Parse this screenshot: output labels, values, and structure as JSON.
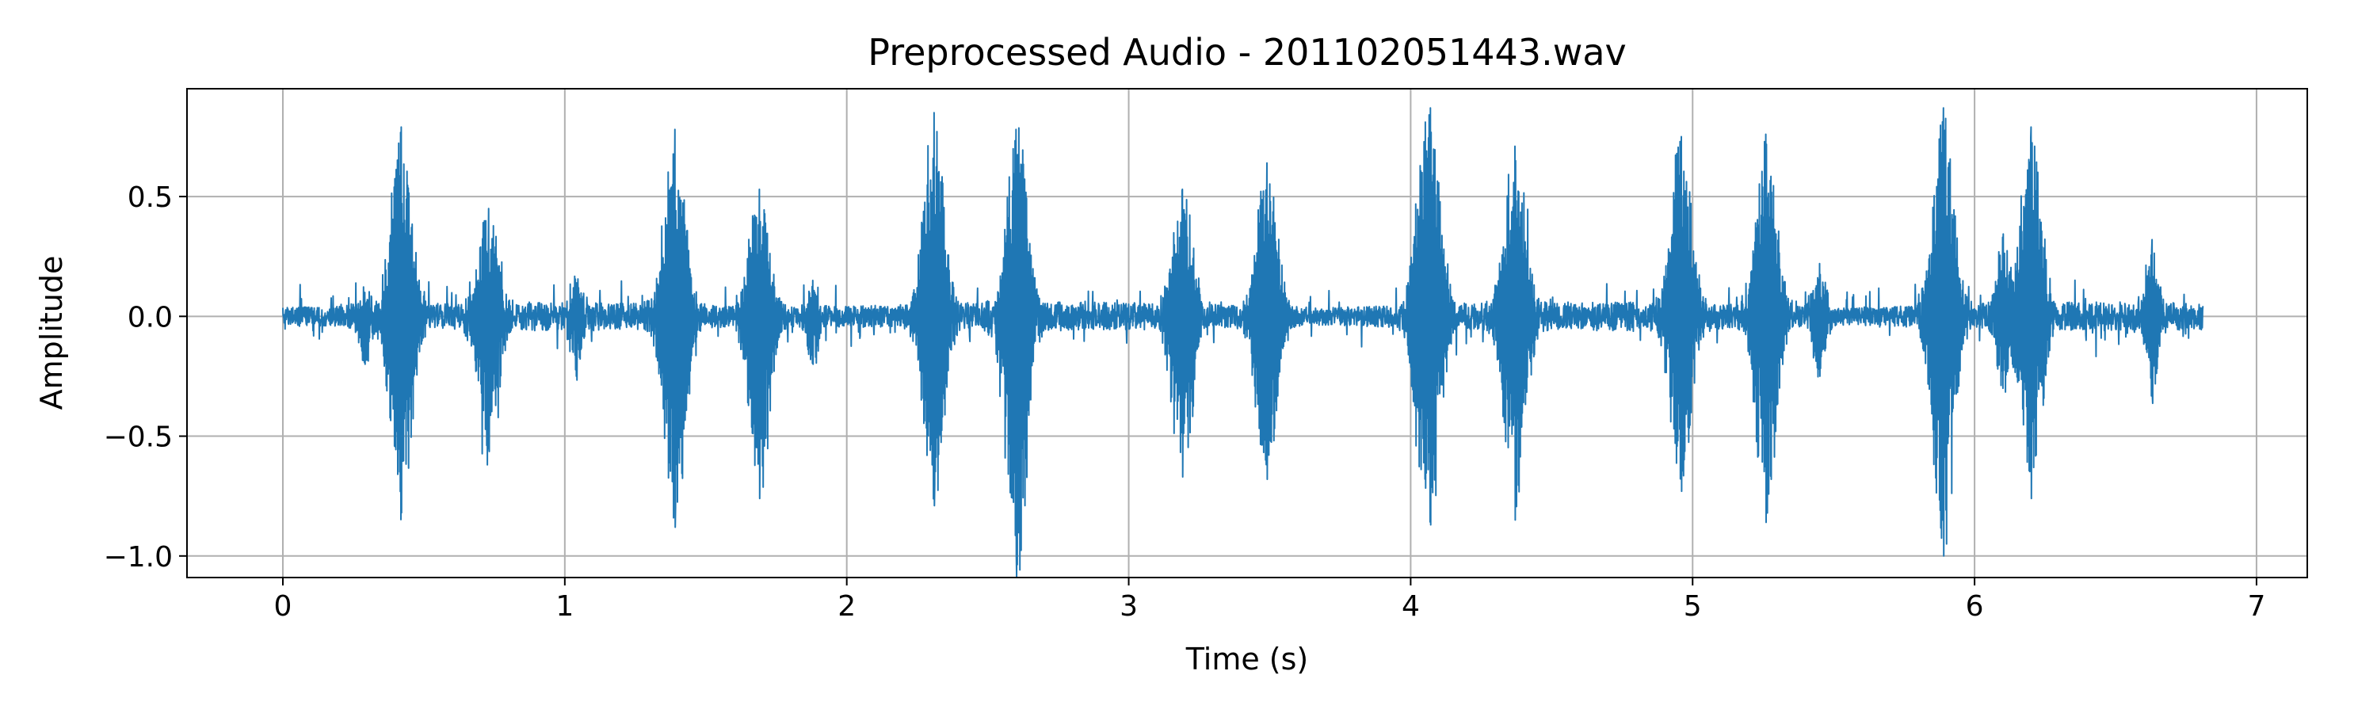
{
  "chart_data": {
    "type": "line",
    "title": "Preprocessed Audio - 201102051443.wav",
    "xlabel": "Time (s)",
    "ylabel": "Amplitude",
    "xlim": [
      -0.34,
      7.18
    ],
    "ylim": [
      -1.09,
      0.95
    ],
    "xticks": [
      0,
      1,
      2,
      3,
      4,
      5,
      6,
      7
    ],
    "xtick_labels": [
      "0",
      "1",
      "2",
      "3",
      "4",
      "5",
      "6",
      "7"
    ],
    "yticks": [
      -1.0,
      -0.5,
      0.0,
      0.5
    ],
    "ytick_labels": [
      "−1.0",
      "−0.5",
      "0.0",
      "0.5"
    ],
    "grid": true,
    "line_color": "#1f77b4",
    "duration_s": 6.81,
    "noise_floor": 0.04,
    "bursts": [
      {
        "t": 0.42,
        "max": 0.79,
        "min": -0.82
      },
      {
        "t": 0.73,
        "max": 0.45,
        "min": -0.55
      },
      {
        "t": 1.39,
        "max": 0.78,
        "min": -0.88
      },
      {
        "t": 1.69,
        "max": 0.53,
        "min": -0.76
      },
      {
        "t": 2.31,
        "max": 0.85,
        "min": -0.79
      },
      {
        "t": 2.6,
        "max": 0.78,
        "min": -1.0
      },
      {
        "t": 3.19,
        "max": 0.53,
        "min": -0.67
      },
      {
        "t": 3.49,
        "max": 0.64,
        "min": -0.68
      },
      {
        "t": 4.07,
        "max": 0.87,
        "min": -0.87
      },
      {
        "t": 4.37,
        "max": 0.71,
        "min": -0.85
      },
      {
        "t": 4.96,
        "max": 0.75,
        "min": -0.73
      },
      {
        "t": 5.26,
        "max": 0.76,
        "min": -0.86
      },
      {
        "t": 5.89,
        "max": 0.87,
        "min": -1.0
      },
      {
        "t": 6.2,
        "max": 0.79,
        "min": -0.76
      }
    ],
    "minor_peaks": [
      {
        "t": 0.29,
        "max": 0.1,
        "min": -0.2
      },
      {
        "t": 1.04,
        "max": 0.14,
        "min": -0.25
      },
      {
        "t": 1.88,
        "max": 0.15,
        "min": -0.2
      },
      {
        "t": 2.62,
        "max": 0.2,
        "min": -0.3
      },
      {
        "t": 4.02,
        "max": 0.25,
        "min": -0.3
      },
      {
        "t": 5.45,
        "max": 0.22,
        "min": -0.25
      },
      {
        "t": 6.1,
        "max": 0.33,
        "min": -0.3
      },
      {
        "t": 6.63,
        "max": 0.32,
        "min": -0.33
      }
    ]
  }
}
